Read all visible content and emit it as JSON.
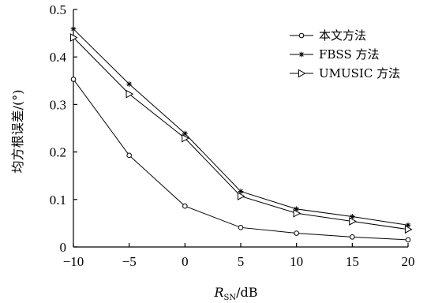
{
  "chart_data": {
    "type": "line",
    "title": "",
    "xlabel": {
      "main": "R",
      "sub": "SN",
      "unit": "/dB"
    },
    "ylabel": "均方根误差/(°)",
    "x": [
      -10,
      -5,
      0,
      5,
      10,
      15,
      20
    ],
    "xlim": [
      -10,
      20
    ],
    "ylim": [
      0,
      0.5
    ],
    "x_ticks": [
      "−10",
      "−5",
      "0",
      "5",
      "10",
      "15",
      "20"
    ],
    "y_ticks": [
      "0",
      "0.1",
      "0.2",
      "0.3",
      "0.4",
      "0.5"
    ],
    "grid": false,
    "legend_position": "top-right",
    "series": [
      {
        "name": "本文方法",
        "marker": "circle",
        "values": [
          0.353,
          0.193,
          0.086,
          0.041,
          0.029,
          0.021,
          0.015
        ]
      },
      {
        "name": "FBSS 方法",
        "marker": "star",
        "values": [
          0.459,
          0.343,
          0.239,
          0.117,
          0.08,
          0.064,
          0.046
        ]
      },
      {
        "name": "UMUSIC 方法",
        "marker": "triangle-right",
        "values": [
          0.441,
          0.322,
          0.229,
          0.107,
          0.071,
          0.054,
          0.037
        ]
      }
    ]
  }
}
